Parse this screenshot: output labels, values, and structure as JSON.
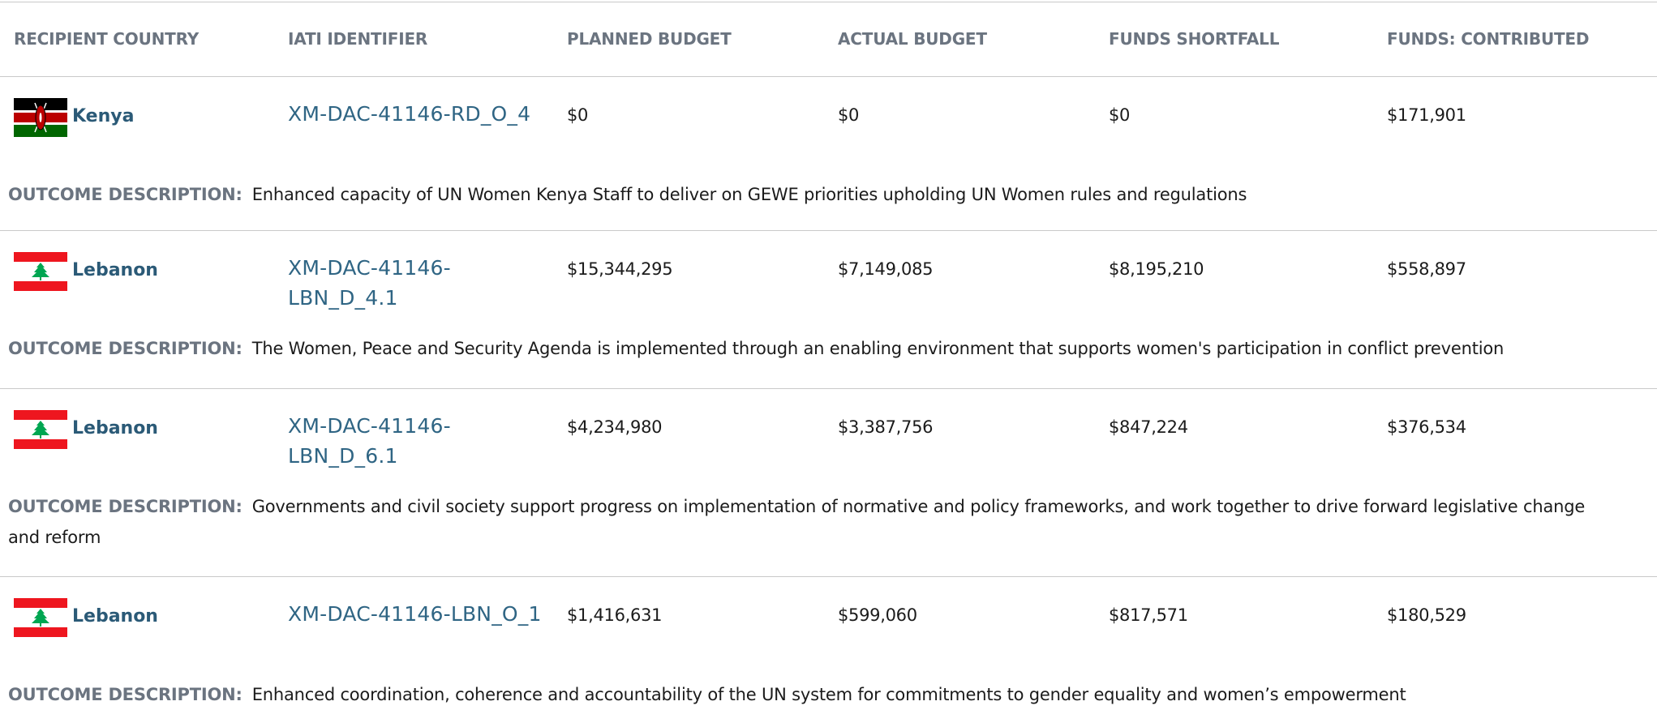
{
  "table": {
    "headers": [
      "RECIPIENT COUNTRY",
      "IATI IDENTIFIER",
      "PLANNED BUDGET",
      "ACTUAL BUDGET",
      "FUNDS SHORTFALL",
      "FUNDS: CONTRIBUTED"
    ],
    "outcome_label": "OUTCOME DESCRIPTION:",
    "rows": [
      {
        "country": "Kenya",
        "iati": "XM-DAC-41146-RD_O_4",
        "planned": "$0",
        "actual": "$0",
        "shortfall": "$0",
        "contributed": "$171,901",
        "description": "Enhanced capacity of UN Women Kenya Staff to deliver on GEWE priorities upholding UN Women rules and regulations"
      },
      {
        "country": "Lebanon",
        "iati": "XM-DAC-41146-LBN_D_4.1",
        "planned": "$15,344,295",
        "actual": "$7,149,085",
        "shortfall": "$8,195,210",
        "contributed": "$558,897",
        "description": "The Women, Peace and Security Agenda is implemented through an enabling environment that supports women's participation in conflict prevention"
      },
      {
        "country": "Lebanon",
        "iati": "XM-DAC-41146-LBN_D_6.1",
        "planned": "$4,234,980",
        "actual": "$3,387,756",
        "shortfall": "$847,224",
        "contributed": "$376,534",
        "description": "Governments and civil society support progress on implementation of normative and policy frameworks, and work together to drive forward legislative change and reform"
      },
      {
        "country": "Lebanon",
        "iati": "XM-DAC-41146-LBN_O_1",
        "planned": "$1,416,631",
        "actual": "$599,060",
        "shortfall": "$817,571",
        "contributed": "$180,529",
        "description": "Enhanced coordination, coherence and accountability of the UN system for commitments to gender equality and women’s empowerment"
      }
    ]
  }
}
